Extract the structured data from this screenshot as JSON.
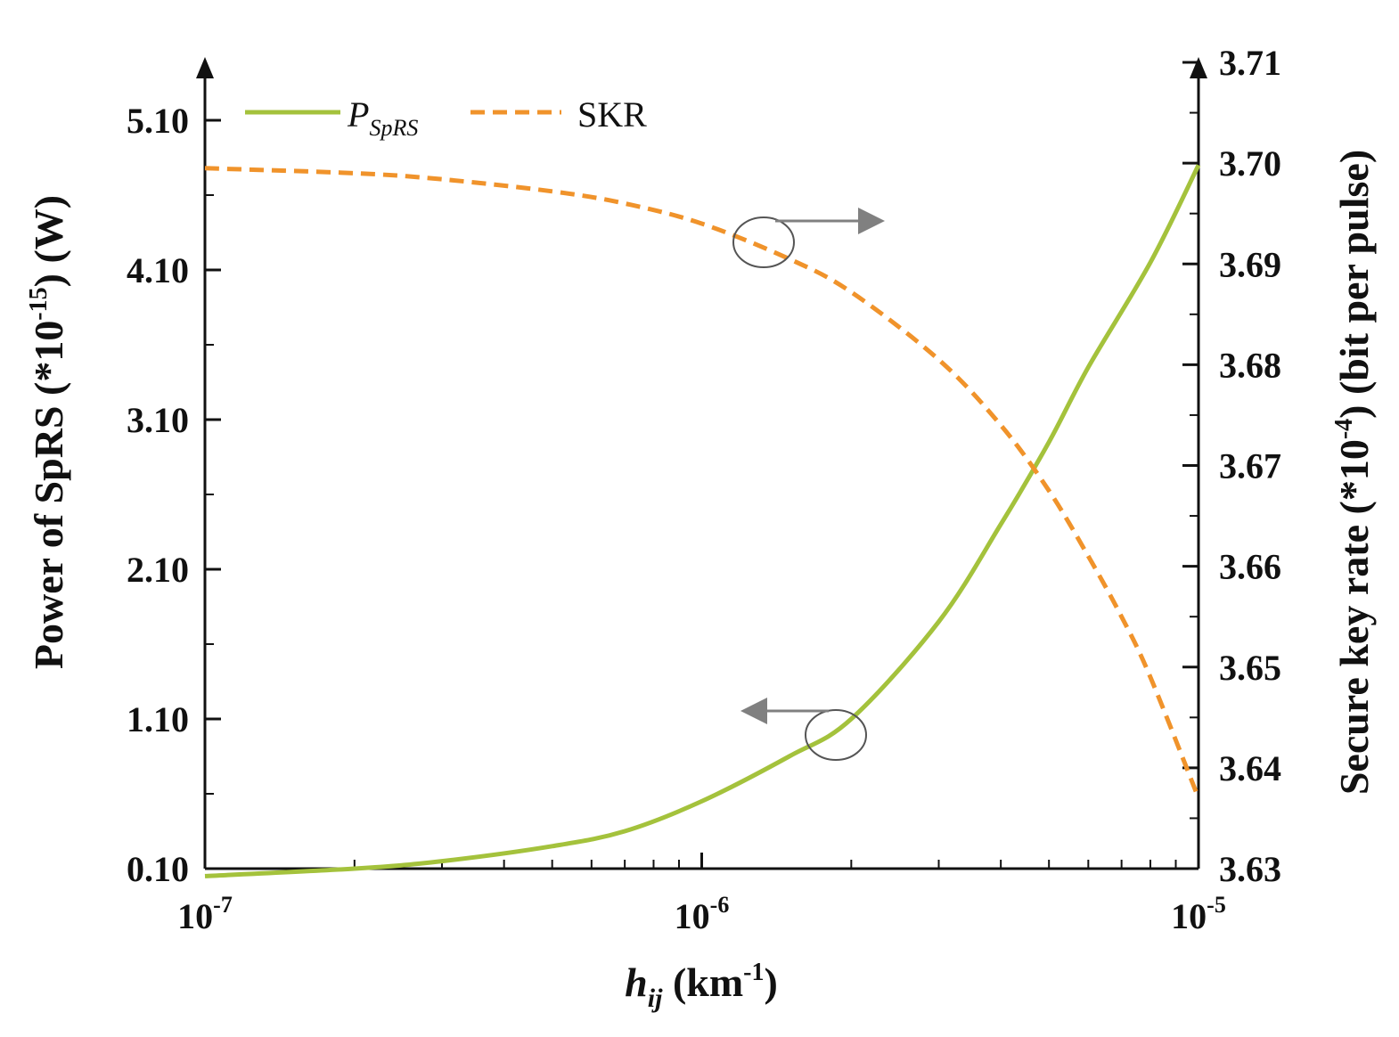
{
  "chart_data": {
    "type": "line",
    "title": "",
    "xlabel": {
      "main": "h",
      "sub": "ij",
      "unit_pre": " (km",
      "unit_sup": "-1",
      "unit_post": ")"
    },
    "ylabel_left": {
      "pre": "Power of SpRS (*10",
      "sup": "-15",
      "post": ") (W)"
    },
    "ylabel_right": {
      "pre": "Secure key rate (*10",
      "sup": "-4",
      "post": ") (bit per pulse)"
    },
    "x_scale": "log",
    "xlim": [
      1e-07,
      1e-05
    ],
    "x_ticks": [
      {
        "value": 1e-07,
        "base": "10",
        "exp": "-7"
      },
      {
        "value": 1e-06,
        "base": "10",
        "exp": "-6"
      },
      {
        "value": 1e-05,
        "base": "10",
        "exp": "-5"
      }
    ],
    "ylim_left": [
      0.1,
      5.1
    ],
    "ylim_right": [
      3.63,
      3.71
    ],
    "y_left_ticks": [
      "0.10",
      "1.10",
      "2.10",
      "3.10",
      "4.10",
      "5.10"
    ],
    "y_right_ticks": [
      "3.63",
      "3.64",
      "3.65",
      "3.66",
      "3.67",
      "3.68",
      "3.69",
      "3.70",
      "3.71"
    ],
    "legend": {
      "placement": "top-left",
      "entries": [
        {
          "label_main": "P",
          "label_sub": "SpRS",
          "style": "solid"
        },
        {
          "label_main": "SKR",
          "label_sub": "",
          "style": "dashed"
        }
      ]
    },
    "series": [
      {
        "axis": "left",
        "color": "#a4c23c",
        "style": "solid",
        "x": [
          1e-07,
          2e-07,
          3e-07,
          5e-07,
          7e-07,
          1e-06,
          1.5e-06,
          2e-06,
          3e-06,
          4e-06,
          5e-06,
          6e-06,
          8e-06,
          1e-05
        ],
        "values": [
          0.05,
          0.1,
          0.15,
          0.25,
          0.35,
          0.55,
          0.85,
          1.1,
          1.75,
          2.4,
          2.95,
          3.45,
          4.15,
          4.8
        ]
      },
      {
        "axis": "right",
        "color": "#f0932b",
        "style": "dashed",
        "x": [
          1e-07,
          2e-07,
          3e-07,
          5e-07,
          7e-07,
          1e-06,
          1.5e-06,
          2e-06,
          3e-06,
          4e-06,
          5e-06,
          6e-06,
          7e-06,
          8e-06,
          1e-05
        ],
        "values": [
          3.6995,
          3.699,
          3.6984,
          3.6972,
          3.696,
          3.694,
          3.6905,
          3.6872,
          3.6805,
          3.674,
          3.6675,
          3.661,
          3.655,
          3.649,
          3.637
        ]
      }
    ],
    "annotations": [
      {
        "type": "circle-arrow",
        "series": "SKR",
        "points_to": "right-axis"
      },
      {
        "type": "circle-arrow",
        "series": "P_SpRS",
        "points_to": "left-axis"
      }
    ]
  }
}
